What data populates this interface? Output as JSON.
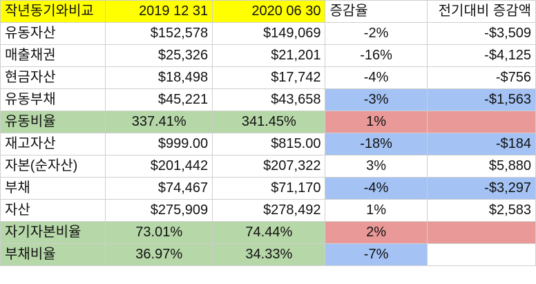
{
  "header": {
    "label": "작년동기와비교",
    "col1": "2019 12 31",
    "col2": "2020 06 30",
    "col3": "증감율",
    "col4": "전기대비 증감액"
  },
  "rows": [
    {
      "label": "유동자산",
      "v1": "$152,578",
      "v2": "$149,069",
      "rate": "-2%",
      "diff": "-$3,509",
      "style": "plain"
    },
    {
      "label": "매출채권",
      "v1": "$25,326",
      "v2": "$21,201",
      "rate": "-16%",
      "diff": "-$4,125",
      "style": "plain"
    },
    {
      "label": "현금자산",
      "v1": "$18,498",
      "v2": "$17,742",
      "rate": "-4%",
      "diff": "-$756",
      "style": "plain"
    },
    {
      "label": "유동부채",
      "v1": "$45,221",
      "v2": "$43,658",
      "rate": "-3%",
      "diff": "-$1,563",
      "style": "blue-right"
    },
    {
      "label": "유동비율",
      "v1": "337.41%",
      "v2": "341.45%",
      "rate": "1%",
      "diff": "",
      "style": "green-red"
    },
    {
      "label": "재고자산",
      "v1": "$999.00",
      "v2": "$815.00",
      "rate": "-18%",
      "diff": "-$184",
      "style": "blue-right"
    },
    {
      "label": "자본(순자산)",
      "v1": "$201,442",
      "v2": "$207,322",
      "rate": "3%",
      "diff": "$5,880",
      "style": "plain"
    },
    {
      "label": "부채",
      "v1": "$74,467",
      "v2": "$71,170",
      "rate": "-4%",
      "diff": "-$3,297",
      "style": "blue-right"
    },
    {
      "label": "자산",
      "v1": "$275,909",
      "v2": "$278,492",
      "rate": "1%",
      "diff": "$2,583",
      "style": "plain"
    },
    {
      "label": "자기자본비율",
      "v1": "73.01%",
      "v2": "74.44%",
      "rate": "2%",
      "diff": "",
      "style": "green-red"
    },
    {
      "label": "부채비율",
      "v1": "36.97%",
      "v2": "34.33%",
      "rate": "-7%",
      "diff": "",
      "style": "green-blue"
    }
  ],
  "colors": {
    "header_yellow": "#ffff00",
    "ratio_green": "#b6d7a8",
    "decrease_blue": "#a4c2f4",
    "increase_red": "#ea9999"
  }
}
